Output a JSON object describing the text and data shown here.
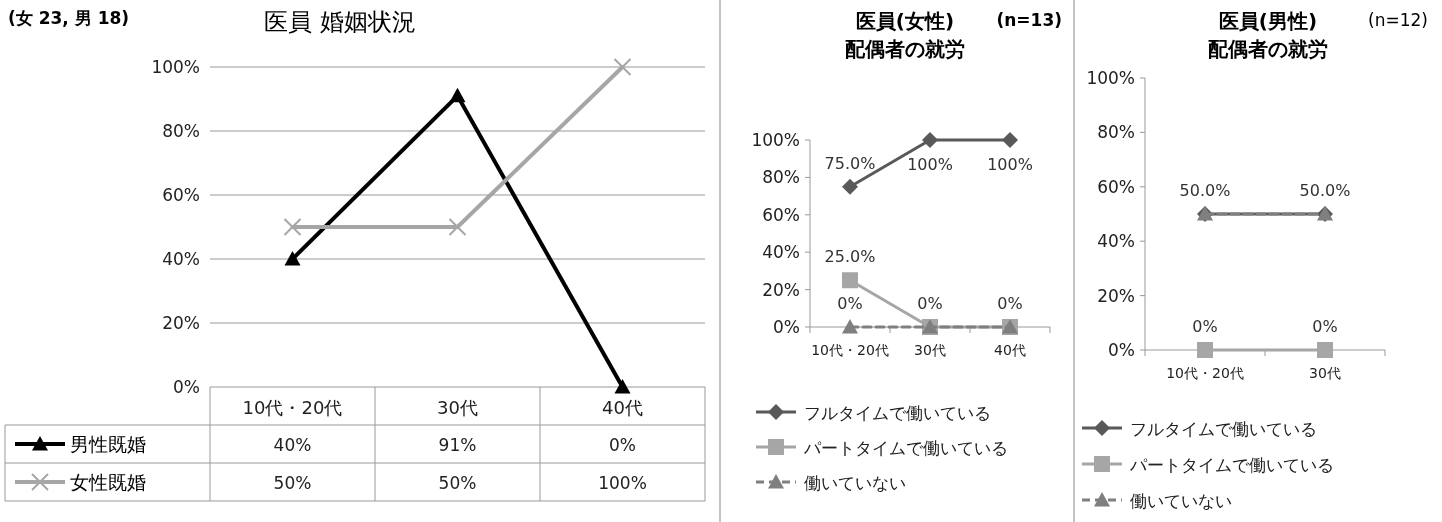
{
  "chart_data": [
    {
      "type": "line",
      "title": "医員  婚姻状況",
      "annotations": [
        "(女 23, 男 18)"
      ],
      "categories": [
        "10代・20代",
        "30代",
        "40代"
      ],
      "ylim": [
        0,
        100
      ],
      "yticks": [
        {
          "value": 0,
          "label": "0%"
        },
        {
          "value": 20,
          "label": "20%"
        },
        {
          "value": 40,
          "label": "40%"
        },
        {
          "value": 60,
          "label": "60%"
        },
        {
          "value": 80,
          "label": "80%"
        },
        {
          "value": 100,
          "label": "100%"
        }
      ],
      "grid": "y",
      "legend": "bottom left",
      "series": [
        {
          "name": "男性既婚",
          "color": "#000000",
          "marker": "triangle",
          "line_style": "solid",
          "values": [
            40,
            91,
            0
          ],
          "value_labels": [
            "40%",
            "91%",
            "0%"
          ]
        },
        {
          "name": "女性既婚",
          "color": "#a6a6a6",
          "marker": "cross",
          "line_style": "solid",
          "values": [
            50,
            50,
            100
          ],
          "value_labels": [
            "50%",
            "50%",
            "100%"
          ]
        }
      ]
    },
    {
      "type": "line",
      "title": "医員(女性)\n配偶者の就労",
      "annotations": [
        "(n=13)"
      ],
      "categories": [
        "10代・20代",
        "30代",
        "40代"
      ],
      "ylim": [
        0,
        100
      ],
      "yticks": [
        {
          "value": 0,
          "label": "0%"
        },
        {
          "value": 20,
          "label": "20%"
        },
        {
          "value": 40,
          "label": "40%"
        },
        {
          "value": 60,
          "label": "60%"
        },
        {
          "value": 80,
          "label": "80%"
        },
        {
          "value": 100,
          "label": "100%"
        }
      ],
      "legend": "bottom",
      "series": [
        {
          "name": "フルタイムで働いている",
          "color": "#595959",
          "marker": "diamond",
          "line_style": "solid",
          "values": [
            75,
            100,
            100
          ],
          "value_labels": [
            "75.0%",
            "100%",
            "100%"
          ]
        },
        {
          "name": "パートタイムで働いている",
          "color": "#a6a6a6",
          "marker": "square",
          "line_style": "solid",
          "values": [
            25,
            0,
            0
          ],
          "value_labels": [
            "25.0%",
            "0%",
            "0%"
          ]
        },
        {
          "name": "働いていない",
          "color": "#7f7f7f",
          "marker": "triangle",
          "line_style": "dashed",
          "values": [
            0,
            0,
            0
          ],
          "value_labels": [
            "0%",
            null,
            null
          ]
        }
      ]
    },
    {
      "type": "line",
      "title": "医員(男性)\n配偶者の就労",
      "annotations": [
        "(n=12)"
      ],
      "categories": [
        "10代・20代",
        "30代"
      ],
      "ylim": [
        0,
        100
      ],
      "yticks": [
        {
          "value": 0,
          "label": "0%"
        },
        {
          "value": 20,
          "label": "20%"
        },
        {
          "value": 40,
          "label": "40%"
        },
        {
          "value": 60,
          "label": "60%"
        },
        {
          "value": 80,
          "label": "80%"
        },
        {
          "value": 100,
          "label": "100%"
        }
      ],
      "legend": "bottom",
      "series": [
        {
          "name": "フルタイムで働いている",
          "color": "#595959",
          "marker": "diamond",
          "line_style": "solid",
          "values": [
            50,
            50
          ],
          "value_labels": [
            "50.0%",
            "50.0%"
          ]
        },
        {
          "name": "パートタイムで働いている",
          "color": "#a6a6a6",
          "marker": "square",
          "line_style": "solid",
          "values": [
            0,
            0
          ],
          "value_labels": [
            "0%",
            "0%"
          ]
        },
        {
          "name": "働いていない",
          "color": "#7f7f7f",
          "marker": "triangle",
          "line_style": "dashed",
          "values": [
            50,
            50
          ],
          "value_labels": [
            null,
            null
          ]
        }
      ]
    }
  ]
}
